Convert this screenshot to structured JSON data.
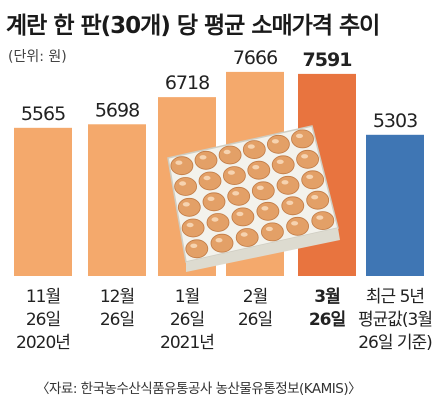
{
  "title": "계란 한 판(30개) 당 평균 소매가격 추이",
  "unit_label": "(단위: 원)",
  "source": "〈자료: 한국농수산식품유통공사 농산물유통정보(KAMIS)〉",
  "colors": {
    "bar": "#f4a96c",
    "highlight": "#e8743f",
    "average": "#3f76b4",
    "eggs": "#e3a067",
    "tray": "#ecebe4"
  },
  "chart_data": {
    "type": "bar",
    "title": "계란 한 판(30개) 당 평균 소매가격 추이",
    "ylabel": "(단위: 원)",
    "ylim": [
      0,
      8000
    ],
    "categories": [
      [
        "11월",
        "26일",
        "2020년"
      ],
      [
        "12월",
        "26일"
      ],
      [
        "1월",
        "26일",
        "2021년"
      ],
      [
        "2월",
        "26일"
      ],
      [
        "3월",
        "26일"
      ],
      [
        "최근 5년",
        "평균값(3월",
        "26일 기준)"
      ]
    ],
    "values": [
      5565,
      5698,
      6718,
      7666,
      7591,
      5303
    ],
    "value_labels": [
      "5565",
      "5698",
      "6718",
      "7666",
      "7591",
      "5303"
    ],
    "highlight_index": 4,
    "average_index": 5
  }
}
